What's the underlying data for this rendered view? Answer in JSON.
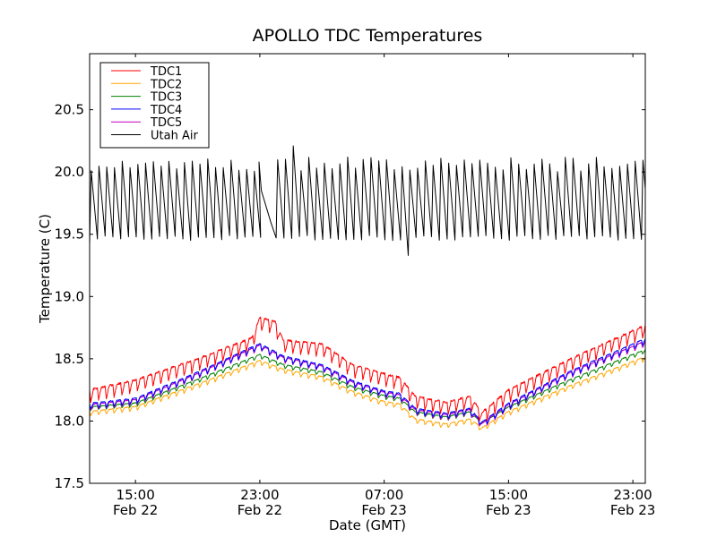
{
  "chart_data": {
    "type": "line",
    "title": "APOLLO TDC Temperatures",
    "xlabel": "Date (GMT)",
    "ylabel": "Temperature (C)",
    "x_units": "hours since Feb 22 00:00 GMT",
    "xlim": [
      12.05,
      47.8
    ],
    "ylim": [
      17.5,
      20.95
    ],
    "grid": false,
    "legend_position": "top-left",
    "yticks": [
      {
        "value": 17.5,
        "label": "17.5"
      },
      {
        "value": 18.0,
        "label": "18.0"
      },
      {
        "value": 18.5,
        "label": "18.5"
      },
      {
        "value": 19.0,
        "label": "19.0"
      },
      {
        "value": 19.5,
        "label": "19.5"
      },
      {
        "value": 20.0,
        "label": "20.0"
      },
      {
        "value": 20.5,
        "label": "20.5"
      }
    ],
    "xticks": [
      {
        "value": 15,
        "time": "15:00",
        "date": "Feb 22"
      },
      {
        "value": 23,
        "time": "23:00",
        "date": "Feb 22"
      },
      {
        "value": 31,
        "time": "07:00",
        "date": "Feb 23"
      },
      {
        "value": 39,
        "time": "15:00",
        "date": "Feb 23"
      },
      {
        "value": 47,
        "time": "23:00",
        "date": "Feb 23"
      }
    ],
    "series": [
      {
        "name": "TDC1",
        "color": "#ff0000",
        "baseline": [
          [
            12.05,
            18.2
          ],
          [
            15,
            18.28
          ],
          [
            19,
            18.45
          ],
          [
            22.5,
            18.62
          ],
          [
            23,
            18.78
          ],
          [
            24,
            18.75
          ],
          [
            24.5,
            18.6
          ],
          [
            27,
            18.57
          ],
          [
            29,
            18.4
          ],
          [
            31,
            18.33
          ],
          [
            32,
            18.3
          ],
          [
            33,
            18.15
          ],
          [
            35,
            18.1
          ],
          [
            36.5,
            18.15
          ],
          [
            37.3,
            18.02
          ],
          [
            39,
            18.2
          ],
          [
            43,
            18.45
          ],
          [
            47.8,
            18.72
          ]
        ],
        "oscillation": {
          "period_h": 0.5,
          "amplitude_c": 0.1
        }
      },
      {
        "name": "TDC2",
        "color": "#ffa500",
        "baseline": [
          [
            12.05,
            18.06
          ],
          [
            15,
            18.1
          ],
          [
            19,
            18.28
          ],
          [
            23,
            18.47
          ],
          [
            24.5,
            18.4
          ],
          [
            27,
            18.34
          ],
          [
            29,
            18.22
          ],
          [
            31,
            18.14
          ],
          [
            32,
            18.12
          ],
          [
            33,
            18.0
          ],
          [
            35,
            17.96
          ],
          [
            36.5,
            18.0
          ],
          [
            37.3,
            17.93
          ],
          [
            39,
            18.06
          ],
          [
            43,
            18.27
          ],
          [
            47.8,
            18.5
          ]
        ],
        "oscillation": {
          "period_h": 0.5,
          "amplitude_c": 0.035
        }
      },
      {
        "name": "TDC3",
        "color": "#008000",
        "baseline": [
          [
            12.05,
            18.1
          ],
          [
            15,
            18.13
          ],
          [
            19,
            18.32
          ],
          [
            23,
            18.52
          ],
          [
            24.5,
            18.44
          ],
          [
            27,
            18.38
          ],
          [
            29,
            18.26
          ],
          [
            31,
            18.19
          ],
          [
            32,
            18.17
          ],
          [
            33,
            18.06
          ],
          [
            35,
            18.02
          ],
          [
            36.5,
            18.06
          ],
          [
            37.3,
            17.97
          ],
          [
            39,
            18.1
          ],
          [
            43,
            18.32
          ],
          [
            47.8,
            18.56
          ]
        ],
        "oscillation": {
          "period_h": 0.5,
          "amplitude_c": 0.03
        }
      },
      {
        "name": "TDC4",
        "color": "#0000ff",
        "baseline": [
          [
            12.05,
            18.12
          ],
          [
            15,
            18.16
          ],
          [
            19,
            18.37
          ],
          [
            23,
            18.6
          ],
          [
            24.5,
            18.5
          ],
          [
            27,
            18.43
          ],
          [
            29,
            18.3
          ],
          [
            31,
            18.22
          ],
          [
            32,
            18.2
          ],
          [
            33,
            18.08
          ],
          [
            35,
            18.04
          ],
          [
            36.5,
            18.08
          ],
          [
            37.3,
            17.97
          ],
          [
            39,
            18.12
          ],
          [
            43,
            18.38
          ],
          [
            47.8,
            18.64
          ]
        ],
        "oscillation": {
          "period_h": 0.5,
          "amplitude_c": 0.045
        }
      },
      {
        "name": "TDC5",
        "color": "#bf00bf",
        "baseline": [
          [
            12.05,
            18.11
          ],
          [
            15,
            18.15
          ],
          [
            19,
            18.36
          ],
          [
            23,
            18.59
          ],
          [
            24.5,
            18.49
          ],
          [
            27,
            18.42
          ],
          [
            29,
            18.29
          ],
          [
            31,
            18.21
          ],
          [
            32,
            18.19
          ],
          [
            33,
            18.07
          ],
          [
            35,
            18.03
          ],
          [
            36.5,
            18.07
          ],
          [
            37.3,
            17.96
          ],
          [
            39,
            18.11
          ],
          [
            43,
            18.37
          ],
          [
            47.8,
            18.62
          ]
        ],
        "oscillation": {
          "period_h": 0.5,
          "amplitude_c": 0.045
        }
      },
      {
        "name": "Utah Air",
        "color": "#000000",
        "range_low": 19.47,
        "range_high": 20.12,
        "oscillation": {
          "period_h": 0.5
        },
        "gap_drift": [
          [
            22.95,
            20.08
          ],
          [
            23.1,
            19.85
          ],
          [
            23.7,
            19.6
          ],
          [
            24.05,
            19.47
          ]
        ],
        "notable_peaks": [
          [
            25.3,
            20.21
          ],
          [
            36.4,
            20.2
          ]
        ],
        "notable_dips": [
          [
            31.9,
            19.33
          ]
        ]
      }
    ]
  }
}
